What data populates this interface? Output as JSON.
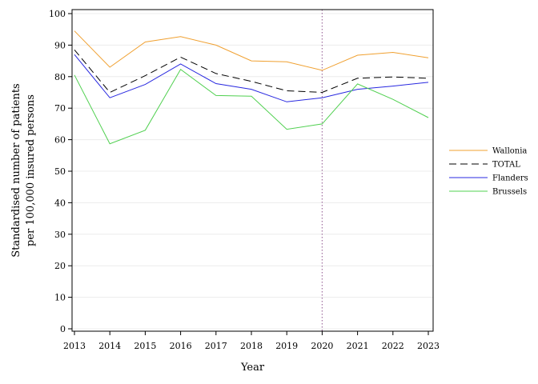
{
  "chart_data": {
    "type": "line",
    "title": "",
    "xlabel": "Year",
    "ylabel_lines": [
      "Standardised number of patients",
      "per 100,000 insured persons"
    ],
    "x": [
      2013,
      2014,
      2015,
      2016,
      2017,
      2018,
      2019,
      2020,
      2021,
      2022,
      2023
    ],
    "ylim": [
      0,
      100
    ],
    "yticks": [
      0,
      10,
      20,
      30,
      40,
      50,
      60,
      70,
      80,
      90,
      100
    ],
    "grid": true,
    "legend_position": "right",
    "reference_line": {
      "x": 2020,
      "color": "#a070a0",
      "style": "dotted"
    },
    "series": [
      {
        "name": "Wallonia",
        "color": "#f0a030",
        "dash": "solid",
        "values": [
          94.5,
          83.0,
          91.0,
          92.7,
          90.0,
          85.0,
          84.7,
          82.0,
          86.8,
          87.7,
          86.0
        ]
      },
      {
        "name": "TOTAL",
        "color": "#000000",
        "dash": "dashed",
        "values": [
          88.5,
          75.0,
          80.3,
          86.2,
          81.0,
          78.5,
          75.5,
          75.0,
          79.5,
          79.9,
          79.5
        ]
      },
      {
        "name": "Flanders",
        "color": "#2828e0",
        "dash": "solid",
        "values": [
          87.0,
          73.3,
          77.5,
          84.0,
          77.8,
          76.0,
          72.0,
          73.3,
          76.0,
          77.0,
          78.2
        ]
      },
      {
        "name": "Brussels",
        "color": "#50d050",
        "dash": "solid",
        "values": [
          80.5,
          58.7,
          63.0,
          82.3,
          74.0,
          73.8,
          63.3,
          65.0,
          77.7,
          72.8,
          67.0
        ]
      }
    ]
  }
}
